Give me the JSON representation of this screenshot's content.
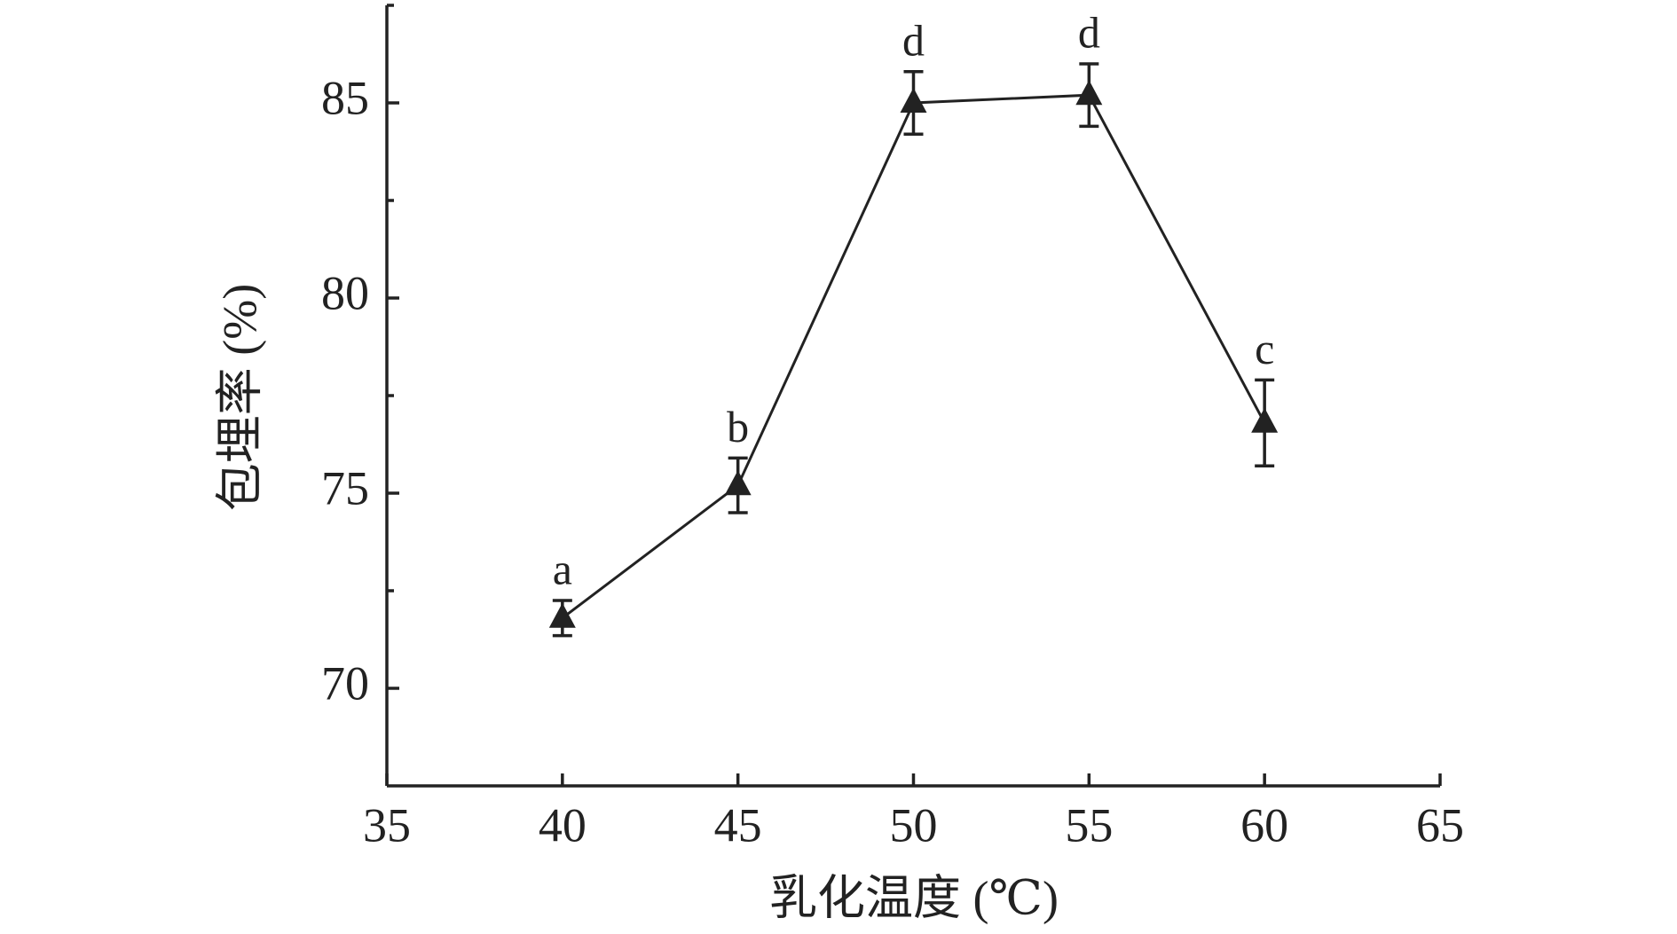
{
  "chart_data": {
    "type": "line",
    "x_label": "乳化温度 (℃)",
    "y_label": "包埋率 (%)",
    "x": [
      40,
      45,
      50,
      55,
      60
    ],
    "values": [
      71.8,
      75.2,
      85.0,
      85.2,
      76.8
    ],
    "errors": [
      0.45,
      0.7,
      0.8,
      0.8,
      1.1
    ],
    "annotations": [
      "a",
      "b",
      "d",
      "d",
      "c"
    ],
    "color": "#222222",
    "xlim": [
      35,
      65
    ],
    "xticks": [
      35,
      40,
      45,
      50,
      55,
      60,
      65
    ],
    "ylim": [
      67.5,
      87.5
    ],
    "yticks": [
      70,
      75,
      80,
      85
    ],
    "yminorticks": [
      72.5,
      77.5,
      82.5,
      87.5
    ]
  }
}
